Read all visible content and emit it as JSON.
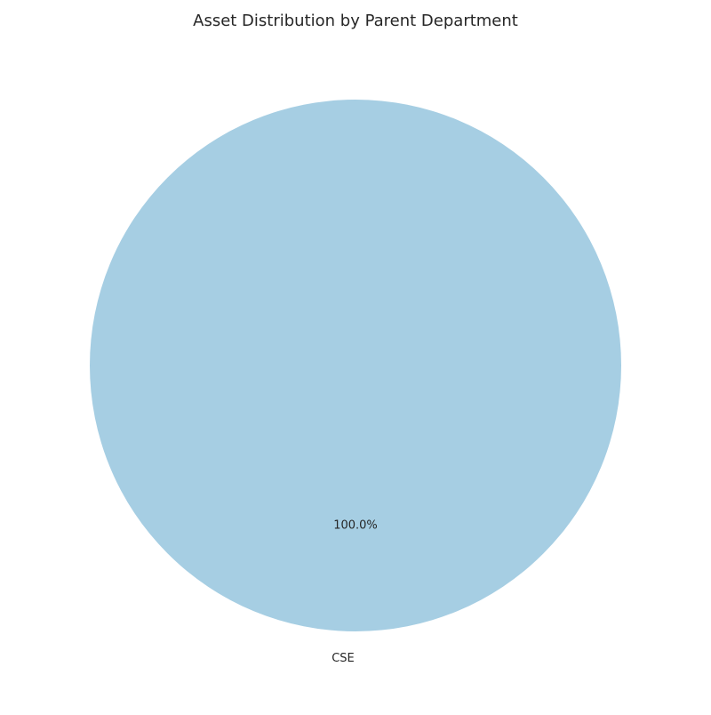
{
  "chart_data": {
    "type": "pie",
    "title": "Asset Distribution by Parent Department",
    "slices": [
      {
        "label": "CSE",
        "value": 100.0,
        "percent_label": "100.0%",
        "color": "#a6cee3"
      }
    ],
    "legend": "none"
  }
}
